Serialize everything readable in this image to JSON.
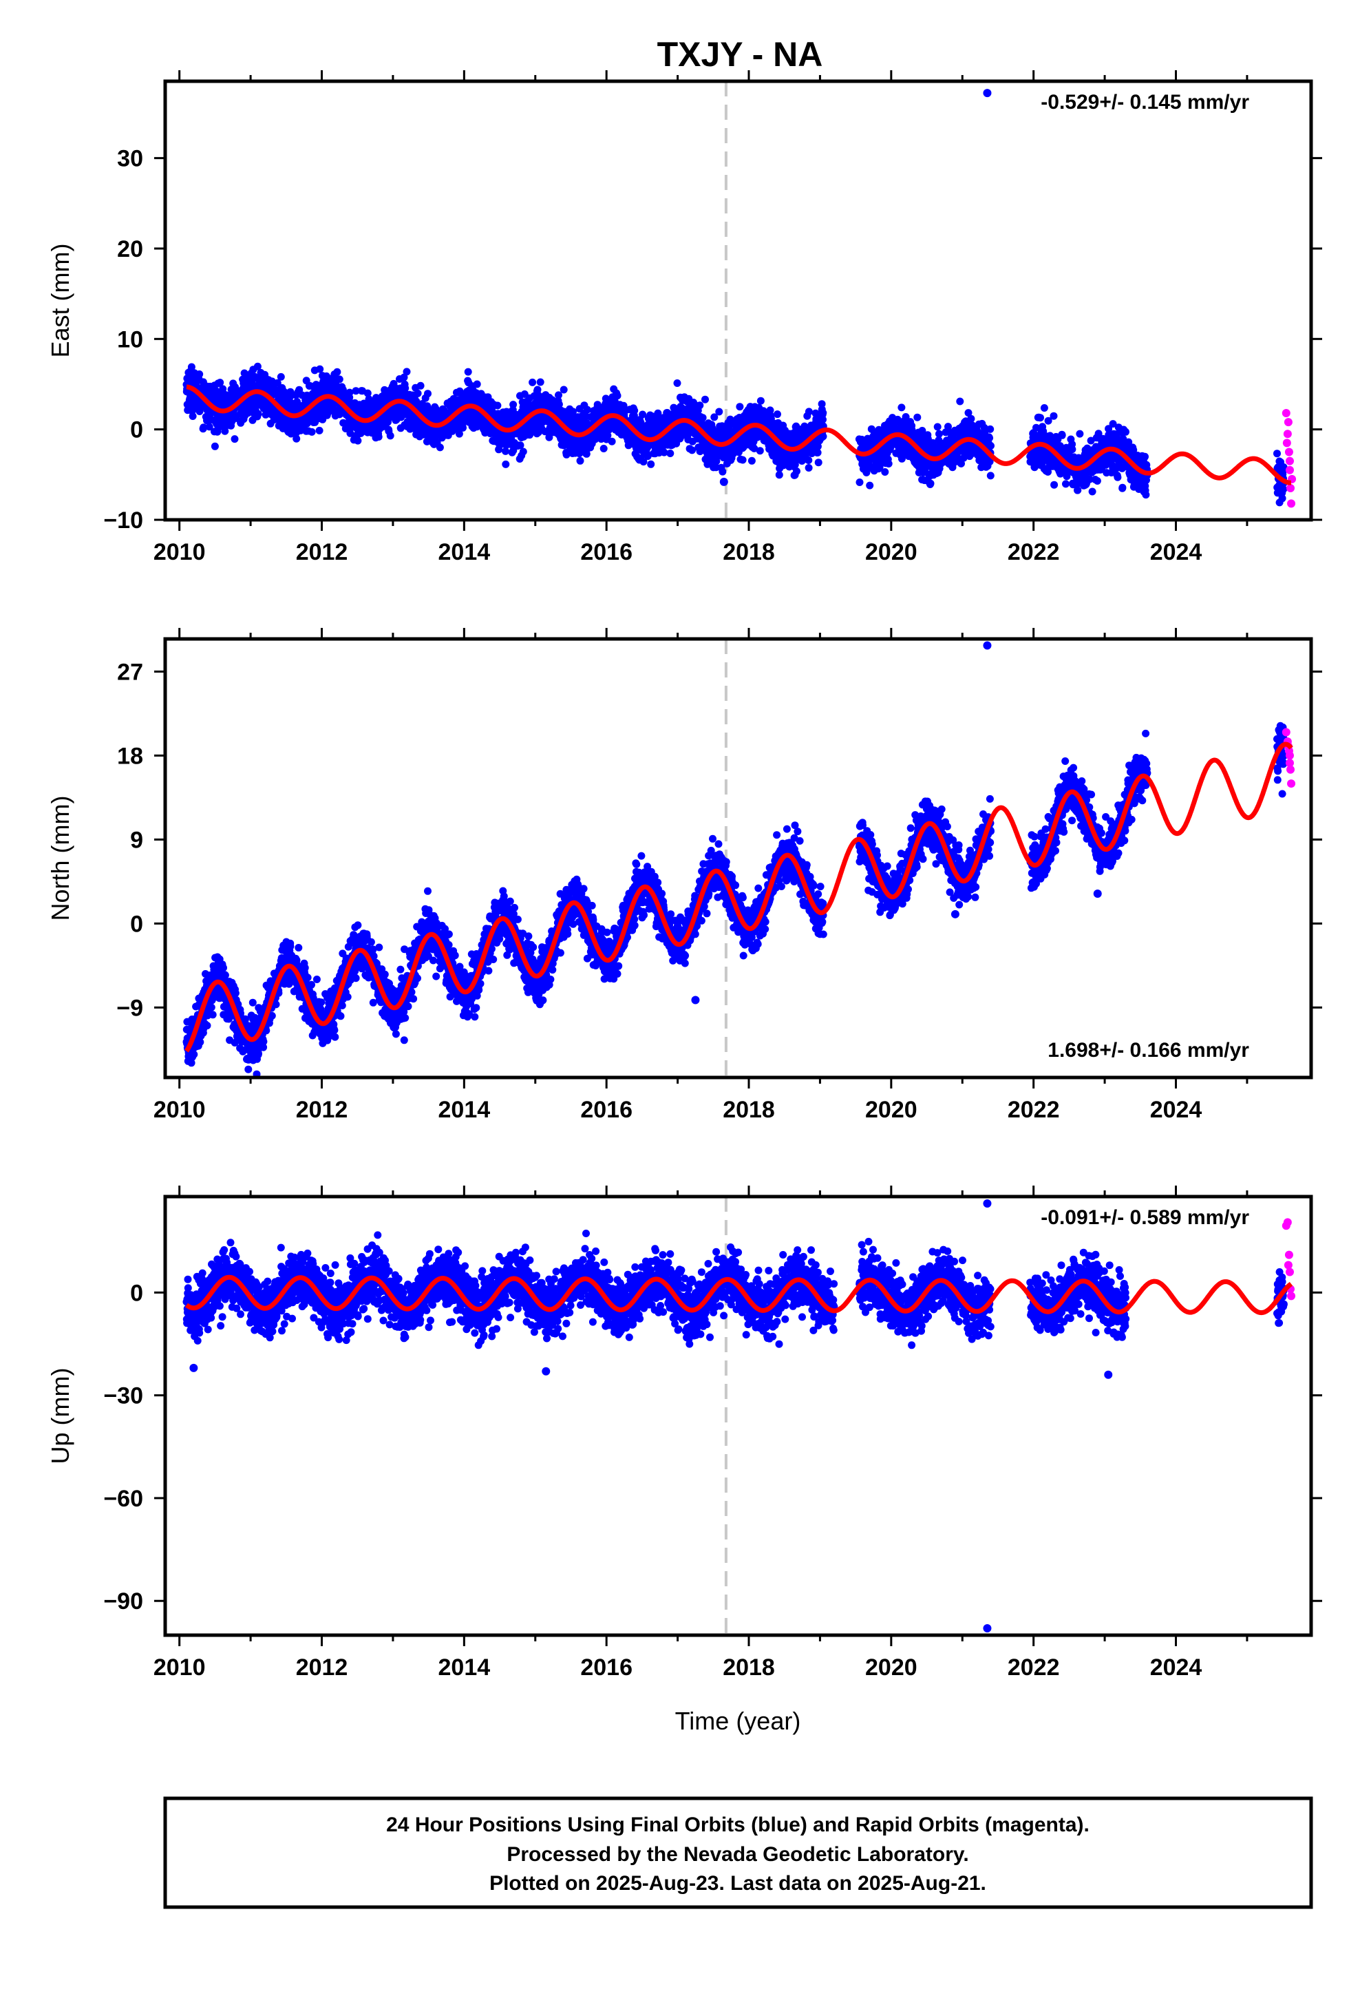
{
  "title": "TXJY - NA",
  "colors": {
    "final_points": "#0000ff",
    "rapid_points": "#ff00ff",
    "model_line": "#ff0000",
    "event_line": "#c8c8c8",
    "frame": "#000000"
  },
  "xlabel": "Time (year)",
  "x_tick_labels": [
    "2010",
    "2012",
    "2014",
    "2016",
    "2018",
    "2020",
    "2022",
    "2024"
  ],
  "caption": {
    "line1": "24 Hour Positions Using Final Orbits (blue) and Rapid Orbits (magenta).",
    "line2": "Processed by the Nevada Geodetic Laboratory.",
    "line3": "Plotted on 2025-Aug-23. Last data on 2025-Aug-21."
  },
  "chart_data": [
    {
      "type": "scatter",
      "component": "east",
      "ylabel": "East (mm)",
      "rate_text": "-0.529+/- 0.145 mm/yr",
      "rate_position": "top-right",
      "xlim": [
        2009.8,
        2025.9
      ],
      "ylim": [
        -10,
        38.5
      ],
      "y_tick_values": [
        -10,
        0,
        10,
        20,
        30
      ],
      "y_tick_labels": [
        "−10",
        "0",
        "10",
        "20",
        "30"
      ],
      "event_line_x": 2017.68,
      "trend": {
        "intercept_mm": 3.5,
        "start_year": 2010.1,
        "rate_mm_per_yr": -0.529
      },
      "seasonal": {
        "amp_mm": 1.2,
        "phase_year": 0.1
      },
      "data_gaps": [
        [
          2019.05,
          2019.55
        ],
        [
          2021.4,
          2021.95
        ],
        [
          2023.6,
          2025.4
        ]
      ],
      "scatter_sd_mm": 1.2,
      "outliers": [
        {
          "x": 2021.35,
          "y": 37.2
        },
        {
          "x": 2017.65,
          "y": -5.8
        }
      ],
      "rapid_points": [
        {
          "x": 2025.55,
          "y": 1.8
        },
        {
          "x": 2025.57,
          "y": -0.5
        },
        {
          "x": 2025.59,
          "y": -2.5
        },
        {
          "x": 2025.6,
          "y": -4.5
        },
        {
          "x": 2025.61,
          "y": -6.5
        },
        {
          "x": 2025.62,
          "y": -8.2
        },
        {
          "x": 2025.58,
          "y": 0.8
        },
        {
          "x": 2025.6,
          "y": -3.5
        },
        {
          "x": 2025.63,
          "y": -5.5
        },
        {
          "x": 2025.56,
          "y": -1.5
        }
      ]
    },
    {
      "type": "scatter",
      "component": "north",
      "ylabel": "North (mm)",
      "rate_text": "1.698+/- 0.166 mm/yr",
      "rate_position": "bottom-right",
      "xlim": [
        2009.8,
        2025.9
      ],
      "ylim": [
        -16.5,
        30.5
      ],
      "y_tick_values": [
        -9,
        0,
        9,
        18,
        27
      ],
      "y_tick_labels": [
        "−9",
        "0",
        "9",
        "18",
        "27"
      ],
      "event_line_x": 2017.68,
      "trend": {
        "intercept_mm": -10.5,
        "start_year": 2010.1,
        "rate_mm_per_yr": 1.698
      },
      "seasonal": {
        "amp_mm": 3.5,
        "phase_year": 0.53
      },
      "data_gaps": [
        [
          2019.05,
          2019.55
        ],
        [
          2021.4,
          2021.95
        ],
        [
          2023.6,
          2025.4
        ]
      ],
      "scatter_sd_mm": 1.3,
      "outliers": [
        {
          "x": 2021.35,
          "y": 29.8
        },
        {
          "x": 2017.25,
          "y": -8.2
        },
        {
          "x": 2022.9,
          "y": 3.2
        },
        {
          "x": 2020.9,
          "y": 1.0
        }
      ],
      "rapid_points": [
        {
          "x": 2025.55,
          "y": 20.5
        },
        {
          "x": 2025.57,
          "y": 19.5
        },
        {
          "x": 2025.59,
          "y": 18.5
        },
        {
          "x": 2025.6,
          "y": 17.2
        },
        {
          "x": 2025.61,
          "y": 16.5
        },
        {
          "x": 2025.62,
          "y": 15.0
        },
        {
          "x": 2025.58,
          "y": 19.0
        },
        {
          "x": 2025.6,
          "y": 18.0
        }
      ]
    },
    {
      "type": "scatter",
      "component": "up",
      "ylabel": "Up (mm)",
      "rate_text": "-0.091+/- 0.589 mm/yr",
      "rate_position": "top-right",
      "xlim": [
        2009.8,
        2025.9
      ],
      "ylim": [
        -100,
        28
      ],
      "y_tick_values": [
        -90,
        -60,
        -30,
        0
      ],
      "y_tick_labels": [
        "−90",
        "−60",
        "−30",
        "0"
      ],
      "event_line_x": 2017.68,
      "trend": {
        "intercept_mm": 0,
        "start_year": 2010.1,
        "rate_mm_per_yr": -0.091
      },
      "seasonal": {
        "amp_mm": 4.5,
        "phase_year": 0.7
      },
      "data_gaps": [
        [
          2019.2,
          2019.55
        ],
        [
          2021.4,
          2021.95
        ],
        [
          2023.3,
          2025.4
        ]
      ],
      "scatter_sd_mm": 4.0,
      "outliers": [
        {
          "x": 2021.35,
          "y": 26.0
        },
        {
          "x": 2021.35,
          "y": -98.0
        },
        {
          "x": 2015.15,
          "y": -23.0
        },
        {
          "x": 2023.05,
          "y": -24.0
        },
        {
          "x": 2010.2,
          "y": -22.0
        }
      ],
      "rapid_points": [
        {
          "x": 2025.55,
          "y": 19.5
        },
        {
          "x": 2025.57,
          "y": 20.5
        },
        {
          "x": 2025.59,
          "y": 11.0
        },
        {
          "x": 2025.6,
          "y": 6.0
        },
        {
          "x": 2025.61,
          "y": 1.0
        },
        {
          "x": 2025.62,
          "y": -1.0
        },
        {
          "x": 2025.58,
          "y": 8.0
        }
      ]
    }
  ]
}
